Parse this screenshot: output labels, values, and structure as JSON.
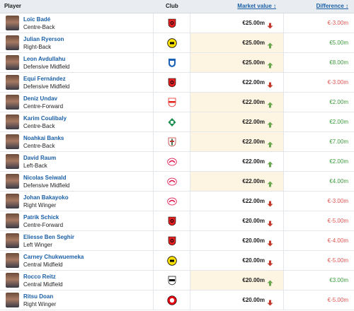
{
  "header": {
    "player": "Player",
    "club": "Club",
    "market_value": "Market value ↕",
    "difference": "Difference ↕"
  },
  "colors": {
    "up": "#6aa84f",
    "down": "#c0392b",
    "positive": "#3c9a3c",
    "negative": "#d9534f",
    "highlight": "#fdf4e1"
  },
  "rows": [
    {
      "name": "Loïc Badé",
      "position": "Centre-Back",
      "club_icon": "leverkusen-crest",
      "value": "€25.00m",
      "trend": "down",
      "difference": "€-3.00m",
      "highlight": false
    },
    {
      "name": "Julian Ryerson",
      "position": "Right-Back",
      "club_icon": "dortmund-crest",
      "value": "€25.00m",
      "trend": "up",
      "difference": "€5.00m",
      "highlight": true
    },
    {
      "name": "Leon Avdullahu",
      "position": "Defensive Midfield",
      "club_icon": "hoffenheim-crest",
      "value": "€25.00m",
      "trend": "up",
      "difference": "€8.00m",
      "highlight": true
    },
    {
      "name": "Equi Fernández",
      "position": "Defensive Midfield",
      "club_icon": "leverkusen-crest",
      "value": "€22.00m",
      "trend": "down",
      "difference": "€-3.00m",
      "highlight": false
    },
    {
      "name": "Deniz Undav",
      "position": "Centre-Forward",
      "club_icon": "stuttgart-crest",
      "value": "€22.00m",
      "trend": "up",
      "difference": "€2.00m",
      "highlight": true
    },
    {
      "name": "Karim Coulibaly",
      "position": "Centre-Back",
      "club_icon": "bremen-crest",
      "value": "€22.00m",
      "trend": "up",
      "difference": "€2.00m",
      "highlight": true
    },
    {
      "name": "Noahkai Banks",
      "position": "Centre-Back",
      "club_icon": "augsburg-crest",
      "value": "€22.00m",
      "trend": "up",
      "difference": "€7.00m",
      "highlight": true
    },
    {
      "name": "David Raum",
      "position": "Left-Back",
      "club_icon": "leipzig-crest",
      "value": "€22.00m",
      "trend": "up",
      "difference": "€2.00m",
      "highlight": false
    },
    {
      "name": "Nicolas Seiwald",
      "position": "Defensive Midfield",
      "club_icon": "leipzig-crest",
      "value": "€22.00m",
      "trend": "up",
      "difference": "€4.00m",
      "highlight": true
    },
    {
      "name": "Johan Bakayoko",
      "position": "Right Winger",
      "club_icon": "leipzig-crest",
      "value": "€22.00m",
      "trend": "down",
      "difference": "€-3.00m",
      "highlight": false
    },
    {
      "name": "Patrik Schick",
      "position": "Centre-Forward",
      "club_icon": "leverkusen-crest",
      "value": "€20.00m",
      "trend": "down",
      "difference": "€-5.00m",
      "highlight": false
    },
    {
      "name": "Eliesse Ben Seghir",
      "position": "Left Winger",
      "club_icon": "leverkusen-crest",
      "value": "€20.00m",
      "trend": "down",
      "difference": "€-4.00m",
      "highlight": false
    },
    {
      "name": "Carney Chukwuemeka",
      "position": "Central Midfield",
      "club_icon": "dortmund-crest",
      "value": "€20.00m",
      "trend": "down",
      "difference": "€-5.00m",
      "highlight": false
    },
    {
      "name": "Rocco Reitz",
      "position": "Central Midfield",
      "club_icon": "gladbach-crest",
      "value": "€20.00m",
      "trend": "up",
      "difference": "€3.00m",
      "highlight": true
    },
    {
      "name": "Ritsu Doan",
      "position": "Right Winger",
      "club_icon": "frankfurt-crest",
      "value": "€20.00m",
      "trend": "down",
      "difference": "€-5.00m",
      "highlight": false
    }
  ]
}
